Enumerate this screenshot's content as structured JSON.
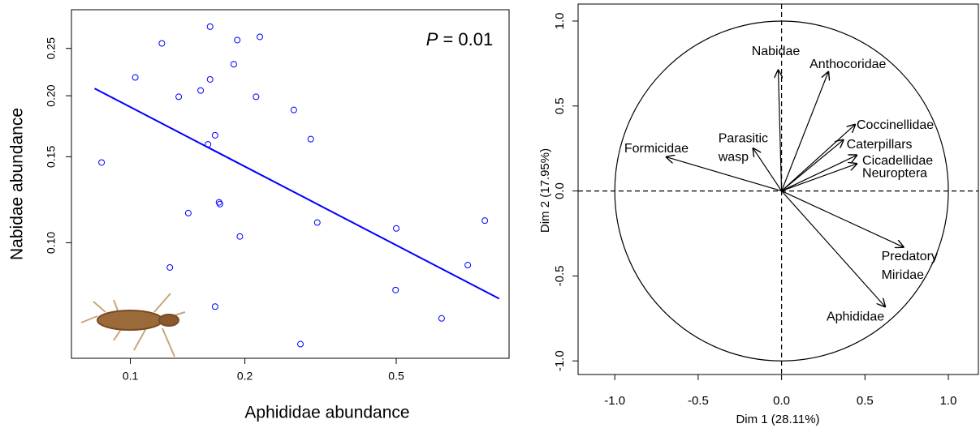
{
  "chart_data": [
    {
      "type": "scatter",
      "x_label": "Aphididae abundance",
      "y_label": "Nabidae abundance",
      "annotation": {
        "variable": "P",
        "text": "= 0.01"
      },
      "xlog": true,
      "ylog": true,
      "color": "#0000ff",
      "xlim": [
        0.07,
        0.99
      ],
      "ylim": [
        0.058,
        0.3
      ],
      "xticks": [
        0.1,
        0.2,
        0.5
      ],
      "yticks": [
        {
          "value": 0.1,
          "label": "0.10"
        },
        0.15,
        {
          "value": 0.2,
          "label": "0.20"
        },
        0.25
      ],
      "x": [
        0.084,
        0.103,
        0.121,
        0.162,
        0.134,
        0.153,
        0.162,
        0.187,
        0.191,
        0.219,
        0.214,
        0.269,
        0.16,
        0.167,
        0.298,
        0.171,
        0.172,
        0.142,
        0.194,
        0.31,
        0.5,
        0.855,
        0.127,
        0.771,
        0.498,
        0.167,
        0.658,
        0.28
      ],
      "values": [
        0.146,
        0.218,
        0.256,
        0.277,
        0.199,
        0.205,
        0.216,
        0.232,
        0.26,
        0.264,
        0.199,
        0.187,
        0.159,
        0.166,
        0.163,
        0.121,
        0.12,
        0.115,
        0.103,
        0.11,
        0.107,
        0.111,
        0.089,
        0.09,
        0.08,
        0.074,
        0.07,
        0.062
      ],
      "fit": {
        "x": [
          0.0805,
          0.933
        ],
        "y": [
          0.207,
          0.0768
        ],
        "color": "#0000ff"
      }
    },
    {
      "type": "biplot",
      "x_label": "Dim 1 (28.11%)",
      "y_label": "Dim 2 (17.95%)",
      "circle": true,
      "color": "#000000",
      "xlim": [
        -1.22,
        1.18
      ],
      "ylim": [
        -1.08,
        1.1
      ],
      "xticks": [
        {
          "value": -1,
          "label": "-1.0"
        },
        -0.5,
        {
          "value": 0,
          "label": "0.0"
        },
        0.5,
        {
          "value": 1,
          "label": "1.0"
        }
      ],
      "yticks": [
        {
          "value": -1,
          "label": "-1.0"
        },
        -0.5,
        {
          "value": 0,
          "label": "0.0"
        },
        0.5,
        {
          "value": 1,
          "label": "1.0"
        }
      ],
      "categories": [
        [
          "Nabidae"
        ],
        [
          "Anthocoridae"
        ],
        [
          "Coccinellidae"
        ],
        [
          "Caterpillars"
        ],
        [
          "Cicadellidae"
        ],
        [
          "Neuroptera"
        ],
        [
          "Predatory",
          "Miridae"
        ],
        [
          "Aphididae"
        ],
        [
          "Formicidae"
        ],
        [
          "Parasitic",
          "wasp"
        ]
      ],
      "x": [
        -0.02,
        0.28,
        0.44,
        0.37,
        0.45,
        0.45,
        0.73,
        0.62,
        -0.69,
        -0.17
      ],
      "values": [
        0.71,
        0.7,
        0.39,
        0.3,
        0.21,
        0.16,
        -0.33,
        -0.68,
        0.2,
        0.25
      ]
    }
  ]
}
